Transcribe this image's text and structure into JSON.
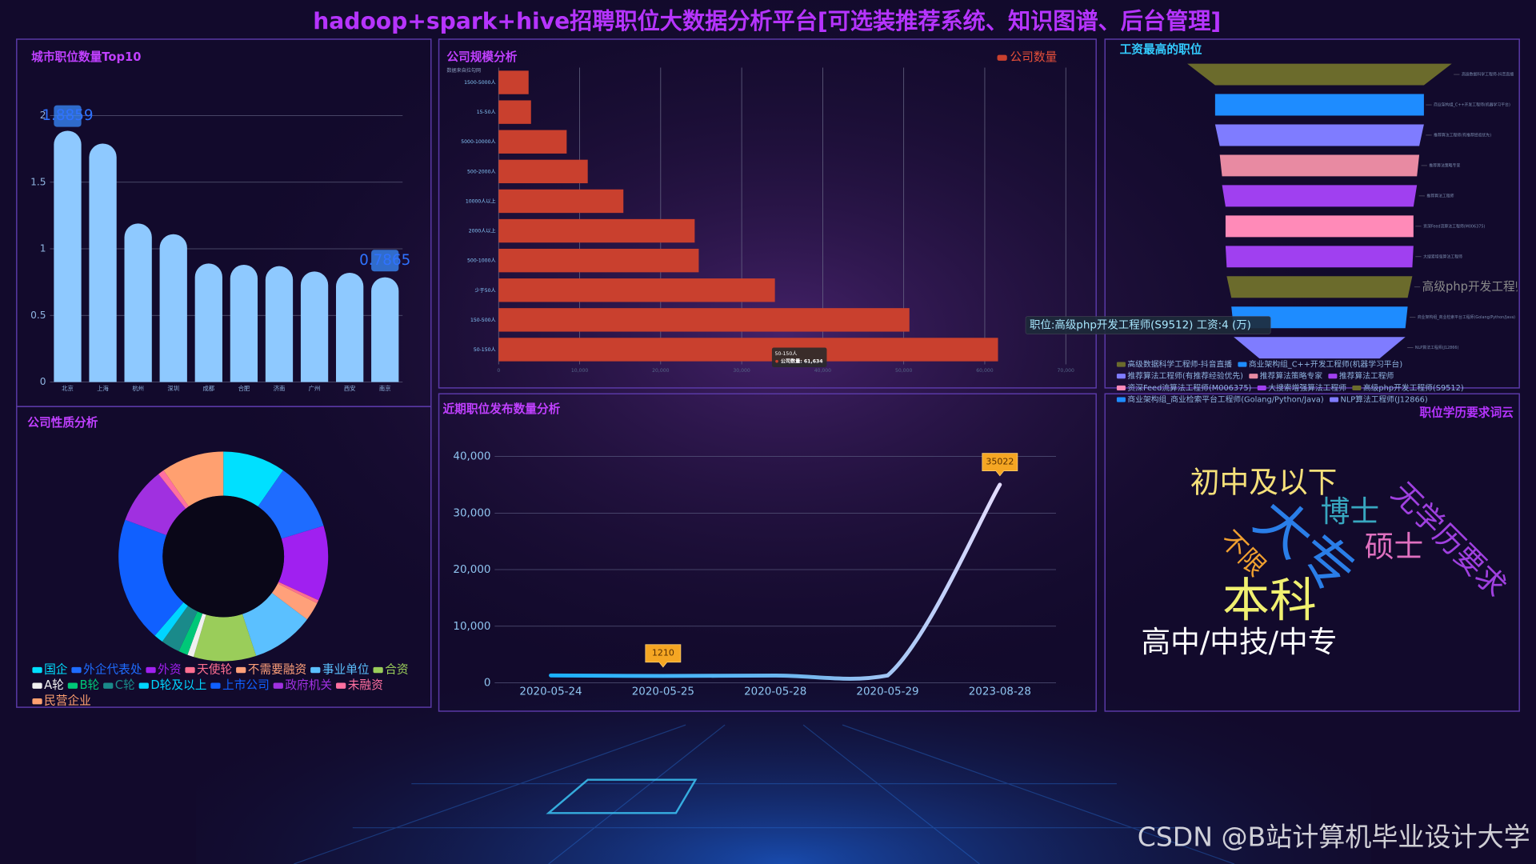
{
  "title": "hadoop+spark+hive招聘职位大数据分析平台[可选装推荐系统、知识图谱、后台管理]",
  "watermark": "CSDN @B站计算机毕业设计大学",
  "chart_data": [
    {
      "type": "bar",
      "title": "城市职位数量Top10",
      "categories": [
        "北京",
        "上海",
        "杭州",
        "深圳",
        "成都",
        "合肥",
        "济南",
        "广州",
        "西安",
        "南京"
      ],
      "values": [
        1.8859,
        1.79,
        1.19,
        1.11,
        0.89,
        0.88,
        0.87,
        0.83,
        0.82,
        0.7865
      ],
      "color": "#8ec9ff",
      "ylim": [
        0,
        2
      ],
      "yticks": [
        0,
        0.5,
        1,
        1.5,
        2
      ],
      "grid": true
    },
    {
      "type": "hbar",
      "title": "公司规模分析",
      "subtitle": "数据来自拉勾网",
      "categories": [
        "1500-5000人",
        "15-50人",
        "5000-10000人",
        "500-2000人",
        "10000人以上",
        "2000人以上",
        "500-1000人",
        "少于50人",
        "150-500人",
        "50-150人"
      ],
      "series": [
        {
          "name": "公司数量",
          "color": "#c9402e",
          "values": [
            3700,
            4000,
            8400,
            11000,
            15400,
            24200,
            24700,
            34100,
            50700,
            61634
          ]
        }
      ],
      "xlim": [
        0,
        70000
      ],
      "xticks": [
        0,
        {
          "value": 10000,
          "label": "10,000"
        },
        {
          "value": 20000,
          "label": "20,000"
        },
        {
          "value": 30000,
          "label": "30,000"
        },
        {
          "value": 40000,
          "label": "40,000"
        },
        {
          "value": 50000,
          "label": "50,000"
        },
        {
          "value": 60000,
          "label": "60,000"
        },
        {
          "value": 70000,
          "label": "70,000"
        }
      ],
      "grid": true,
      "legend": "top-right",
      "tooltip": "公司数量: 61,634"
    },
    {
      "type": "funnel",
      "title": "工资最高的职位",
      "categories": [
        "高级数据科学工程师-抖音直播",
        "商业架构组_C++开发工程师(机器学习平台)",
        "推荐算法工程师(有推荐经验优先)",
        "推荐算法策略专家",
        "推荐算法工程师",
        "资深Feed流算法工程师(M006375)",
        "大搜索增强算法工程师",
        "高级php开发工程师(S9512)",
        "商业架构组_商业检索平台工程师(Golang/Python/Java)",
        "NLP算法工程师(J12866)"
      ],
      "values": [
        5.7,
        4.5,
        4.5,
        4.3,
        4.2,
        4.05,
        4.05,
        4,
        3.8,
        3.7
      ],
      "colors": [
        "#6b6b2c",
        "#1e8cff",
        "#7f7cff",
        "#e88aa2",
        "#a040f0",
        "#ff8ab8",
        "#a040f0",
        "#6b6b2c",
        "#1e8cff",
        "#7f7cff"
      ],
      "tooltip": "职位:高级php开发工程师(S9512) 工资:4 (万)"
    },
    {
      "type": "pie",
      "title": "公司性质分析",
      "categories": [
        "国企",
        "外企代表处",
        "外资",
        "天使轮",
        "不需要融资",
        "事业单位",
        "合资",
        "A轮",
        "B轮",
        "C轮",
        "D轮及以上",
        "上市公司",
        "政府机关",
        "未融资",
        "民营企业"
      ],
      "values": [
        10,
        11,
        12,
        0.5,
        3,
        10,
        10,
        1,
        1.5,
        3,
        1.5,
        20,
        9,
        1,
        10
      ],
      "colors": [
        "#00e0ff",
        "#1e6cff",
        "#a020f0",
        "#ff6f91",
        "#ffa07a",
        "#5bc0ff",
        "#9acd5a",
        "#f0f0f0",
        "#00c878",
        "#1a8a8a",
        "#00d5ff",
        "#1060ff",
        "#a030e0",
        "#ff70a0",
        "#ffa070"
      ],
      "legend": "bottom"
    },
    {
      "type": "line",
      "title": "近期职位发布数量分析",
      "categories": [
        "2020-05-24",
        "2020-05-25",
        "2020-05-28",
        "2020-05-29",
        "2023-08-28"
      ],
      "values": [
        1300,
        1210,
        1280,
        1290,
        35022
      ],
      "color": "#1ab2ff",
      "ylim": [
        0,
        40000
      ],
      "yticks": [
        0,
        {
          "value": 10000,
          "label": "10,000"
        },
        {
          "value": 20000,
          "label": "20,000"
        },
        {
          "value": 30000,
          "label": "30,000"
        },
        {
          "value": 40000,
          "label": "40,000"
        }
      ],
      "grid": true
    }
  ],
  "word_cloud": {
    "title": "职位学历要求词云",
    "words": [
      "初中及以下",
      "博士",
      "大专",
      "无学历要求",
      "不限",
      "硕士",
      "本科",
      "高中/中技/中专"
    ]
  }
}
